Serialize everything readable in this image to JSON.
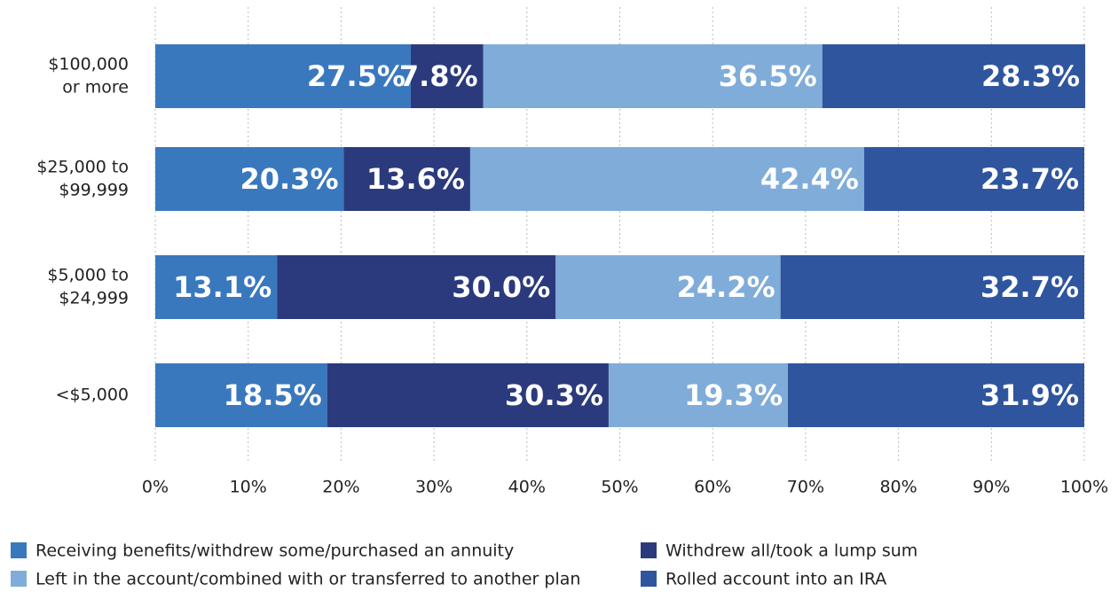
{
  "chart_data": {
    "type": "stacked_bar_horizontal",
    "categories": [
      [
        "$100,000",
        "or more"
      ],
      [
        "$25,000 to",
        "$99,999"
      ],
      [
        "$5,000 to",
        "$24,999"
      ],
      [
        "<$5,000"
      ]
    ],
    "series": [
      {
        "name": "Receiving benefits/withdrew some/purchased an annuity",
        "color": "#3a78be",
        "values": [
          27.5,
          20.3,
          13.1,
          18.5
        ],
        "value_labels": [
          "27.5%",
          "20.3%",
          "13.1%",
          "18.5%"
        ]
      },
      {
        "name": "Withdrew all/took a lump sum",
        "color": "#2b3a7c",
        "values": [
          7.8,
          13.6,
          30.0,
          30.3
        ],
        "value_labels": [
          "7.8%",
          "13.6%",
          "30.0%",
          "30.3%"
        ]
      },
      {
        "name": "Left in the account/combined with or transferred to another plan",
        "color": "#80acd9",
        "values": [
          36.5,
          42.4,
          24.2,
          19.3
        ],
        "value_labels": [
          "36.5%",
          "42.4%",
          "24.2%",
          "19.3%"
        ]
      },
      {
        "name": "Rolled account into an IRA",
        "color": "#2f559e",
        "values": [
          28.3,
          23.7,
          32.7,
          31.9
        ],
        "value_labels": [
          "28.3%",
          "23.7%",
          "32.7%",
          "31.9%"
        ]
      }
    ],
    "xlim": [
      0,
      100
    ],
    "xticks": [
      {
        "value": 0,
        "label": "0%"
      },
      {
        "value": 10,
        "label": "10%"
      },
      {
        "value": 20,
        "label": "20%"
      },
      {
        "value": 30,
        "label": "30%"
      },
      {
        "value": 40,
        "label": "40%"
      },
      {
        "value": 50,
        "label": "50%"
      },
      {
        "value": 60,
        "label": "60%"
      },
      {
        "value": 70,
        "label": "70%"
      },
      {
        "value": 80,
        "label": "80%"
      },
      {
        "value": 90,
        "label": "90%"
      },
      {
        "value": 100,
        "label": "100%"
      }
    ],
    "grid": true,
    "legend": "bottom"
  }
}
